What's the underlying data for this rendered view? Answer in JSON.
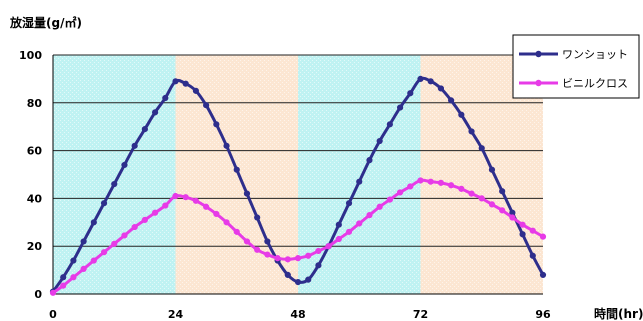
{
  "chart_data": {
    "type": "line",
    "ylabel": "放湿量(g/㎡)",
    "xlabel": "時間(hr)",
    "xlim": [
      0,
      96
    ],
    "ylim": [
      0,
      100
    ],
    "x_ticks": [
      0,
      24,
      48,
      72,
      96
    ],
    "y_ticks": [
      0,
      20,
      40,
      60,
      80,
      100
    ],
    "background_bands": [
      {
        "from": 0,
        "to": 24,
        "color": "#bff2f2"
      },
      {
        "from": 24,
        "to": 48,
        "color": "#fce6d2"
      },
      {
        "from": 48,
        "to": 72,
        "color": "#bff2f2"
      },
      {
        "from": 72,
        "to": 96,
        "color": "#fce6d2"
      }
    ],
    "grid": true,
    "legend_position": "top-right",
    "series": [
      {
        "name": "ワンショット",
        "color": "#2e2e8c",
        "x": [
          0,
          2,
          4,
          6,
          8,
          10,
          12,
          14,
          16,
          18,
          20,
          22,
          24,
          26,
          28,
          30,
          32,
          34,
          36,
          38,
          40,
          42,
          44,
          46,
          48,
          50,
          52,
          54,
          56,
          58,
          60,
          62,
          64,
          66,
          68,
          70,
          72,
          74,
          76,
          78,
          80,
          82,
          84,
          86,
          88,
          90,
          92,
          94,
          96
        ],
        "y": [
          1,
          7,
          14,
          22,
          30,
          38,
          46,
          54,
          62,
          69,
          76,
          82,
          89,
          88,
          85,
          79,
          71,
          62,
          52,
          42,
          32,
          22,
          14,
          8,
          5,
          6,
          12,
          20,
          29,
          38,
          47,
          56,
          64,
          71,
          78,
          84,
          90,
          89,
          86,
          81,
          75,
          68,
          61,
          52,
          43,
          34,
          25,
          16,
          8
        ]
      },
      {
        "name": "ビニルクロス",
        "color": "#e73be7",
        "x": [
          0,
          2,
          4,
          6,
          8,
          10,
          12,
          14,
          16,
          18,
          20,
          22,
          24,
          26,
          28,
          30,
          32,
          34,
          36,
          38,
          40,
          42,
          44,
          46,
          48,
          50,
          52,
          54,
          56,
          58,
          60,
          62,
          64,
          66,
          68,
          70,
          72,
          74,
          76,
          78,
          80,
          82,
          84,
          86,
          88,
          90,
          92,
          94,
          96
        ],
        "y": [
          0.5,
          3.5,
          7,
          10.5,
          14,
          17.5,
          21,
          24.5,
          28,
          31,
          34,
          37,
          41,
          40.5,
          39,
          36.5,
          33.5,
          30,
          26,
          22,
          18.5,
          16.5,
          15,
          14.5,
          15,
          16,
          18,
          20,
          23,
          26,
          29.5,
          33,
          36.5,
          39.5,
          42.5,
          45,
          47.5,
          47,
          46.5,
          45.5,
          44,
          42,
          40,
          37.5,
          35,
          32,
          29,
          26.5,
          24
        ]
      }
    ]
  }
}
